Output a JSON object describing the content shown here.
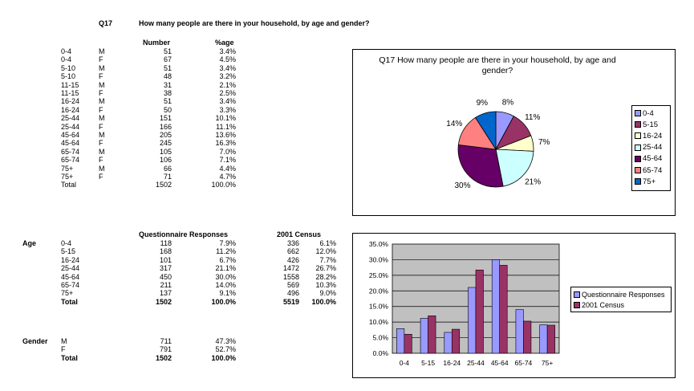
{
  "header": {
    "code": "Q17",
    "question": "How many people are there in your household, by age and gender?"
  },
  "table1": {
    "col_number": "Number",
    "col_pct": "%age",
    "rows": [
      {
        "age": "0-4",
        "gender": "M",
        "number": "51",
        "pct": "3.4%"
      },
      {
        "age": "0-4",
        "gender": "F",
        "number": "67",
        "pct": "4.5%"
      },
      {
        "age": "5-10",
        "gender": "M",
        "number": "51",
        "pct": "3.4%"
      },
      {
        "age": "5-10",
        "gender": "F",
        "number": "48",
        "pct": "3.2%"
      },
      {
        "age": "11-15",
        "gender": "M",
        "number": "31",
        "pct": "2.1%"
      },
      {
        "age": "11-15",
        "gender": "F",
        "number": "38",
        "pct": "2.5%"
      },
      {
        "age": "16-24",
        "gender": "M",
        "number": "51",
        "pct": "3.4%"
      },
      {
        "age": "16-24",
        "gender": "F",
        "number": "50",
        "pct": "3.3%"
      },
      {
        "age": "25-44",
        "gender": "M",
        "number": "151",
        "pct": "10.1%"
      },
      {
        "age": "25-44",
        "gender": "F",
        "number": "166",
        "pct": "11.1%"
      },
      {
        "age": "45-64",
        "gender": "M",
        "number": "205",
        "pct": "13.6%"
      },
      {
        "age": "45-64",
        "gender": "F",
        "number": "245",
        "pct": "16.3%"
      },
      {
        "age": "65-74",
        "gender": "M",
        "number": "105",
        "pct": "7.0%"
      },
      {
        "age": "65-74",
        "gender": "F",
        "number": "106",
        "pct": "7.1%"
      },
      {
        "age": "75+",
        "gender": "M",
        "number": "66",
        "pct": "4.4%"
      },
      {
        "age": "75+",
        "gender": "F",
        "number": "71",
        "pct": "4.7%"
      }
    ],
    "total": {
      "label": "Total",
      "number": "1502",
      "pct": "100.0%"
    }
  },
  "table2": {
    "label": "Age",
    "col_q": "Questionnaire Responses",
    "col_c": "2001 Census",
    "rows": [
      {
        "age": "0-4",
        "qn": "118",
        "qp": "7.9%",
        "cn": "336",
        "cp": "6.1%"
      },
      {
        "age": "5-15",
        "qn": "168",
        "qp": "11.2%",
        "cn": "662",
        "cp": "12.0%"
      },
      {
        "age": "16-24",
        "qn": "101",
        "qp": "6.7%",
        "cn": "426",
        "cp": "7.7%"
      },
      {
        "age": "25-44",
        "qn": "317",
        "qp": "21.1%",
        "cn": "1472",
        "cp": "26.7%"
      },
      {
        "age": "45-64",
        "qn": "450",
        "qp": "30.0%",
        "cn": "1558",
        "cp": "28.2%"
      },
      {
        "age": "65-74",
        "qn": "211",
        "qp": "14.0%",
        "cn": "569",
        "cp": "10.3%"
      },
      {
        "age": "75+",
        "qn": "137",
        "qp": "9.1%",
        "cn": "496",
        "cp": "9.0%"
      }
    ],
    "total": {
      "label": "Total",
      "qn": "1502",
      "qp": "100.0%",
      "cn": "5519",
      "cp": "100.0%"
    }
  },
  "table3": {
    "label": "Gender",
    "rows": [
      {
        "g": "M",
        "n": "711",
        "p": "47.3%"
      },
      {
        "g": "F",
        "n": "791",
        "p": "52.7%"
      }
    ],
    "total": {
      "label": "Total",
      "n": "1502",
      "p": "100.0%"
    }
  },
  "chart_data": [
    {
      "type": "pie",
      "title": "Q17 How many people are there in your household, by age and gender?",
      "categories": [
        "0-4",
        "5-15",
        "16-24",
        "25-44",
        "45-64",
        "65-74",
        "75+"
      ],
      "values": [
        7.9,
        11.2,
        6.7,
        21.1,
        30.0,
        14.0,
        9.1
      ],
      "data_labels": [
        "8%",
        "11%",
        "7%",
        "21%",
        "30%",
        "14%",
        "9%"
      ],
      "colors": [
        "#9999FF",
        "#993366",
        "#FFFFCC",
        "#CCFFFF",
        "#660066",
        "#FF8080",
        "#0066CC"
      ],
      "legend": "right"
    },
    {
      "type": "bar",
      "categories": [
        "0-4",
        "5-15",
        "16-24",
        "25-44",
        "45-64",
        "65-74",
        "75+"
      ],
      "series": [
        {
          "name": "Questionnaire Responses",
          "values": [
            7.9,
            11.2,
            6.7,
            21.1,
            30.0,
            14.0,
            9.1
          ],
          "color": "#9999FF"
        },
        {
          "name": "2001 Census",
          "values": [
            6.1,
            12.0,
            7.7,
            26.7,
            28.2,
            10.3,
            9.0
          ],
          "color": "#993366"
        }
      ],
      "ylim": [
        0,
        35
      ],
      "yticks": [
        "0.0%",
        "5.0%",
        "10.0%",
        "15.0%",
        "20.0%",
        "25.0%",
        "30.0%",
        "35.0%"
      ],
      "plot_background": "#C0C0C0",
      "grid": true,
      "legend": "right"
    }
  ]
}
